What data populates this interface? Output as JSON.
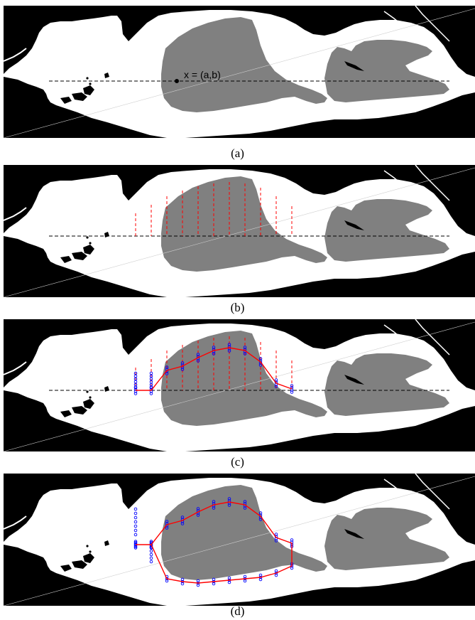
{
  "figure": {
    "panels": [
      {
        "caption": "(a)",
        "point_label": "x = (a,b)"
      },
      {
        "caption": "(b)"
      },
      {
        "caption": "(c)"
      },
      {
        "caption": "(d)"
      }
    ]
  },
  "colors": {
    "land": "#000000",
    "water": "#ffffff",
    "region": "#808080",
    "transect": "#ff0000",
    "sample_marker": "#0000ff",
    "boundary_estimate": "#ff0000",
    "baseline": "#000000"
  }
}
